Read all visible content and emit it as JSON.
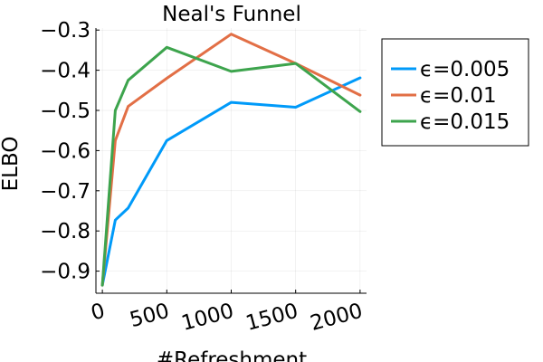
{
  "chart_data": {
    "type": "line",
    "title": "Neal's Funnel",
    "xlabel": "#Refreshment",
    "ylabel": "ELBO",
    "x": [
      0,
      100,
      200,
      500,
      1000,
      1500,
      2000
    ],
    "xticks": [
      0,
      500,
      1000,
      1500,
      2000
    ],
    "yticks": [
      -0.9,
      -0.8,
      -0.7,
      -0.6,
      -0.5,
      -0.4,
      -0.3
    ],
    "xlim": [
      -50,
      2050
    ],
    "ylim": [
      -0.955,
      -0.295
    ],
    "grid": true,
    "legend_position": "top-right, outside plot",
    "series": [
      {
        "name": "ϵ=0.005",
        "color": "#009af9",
        "values": [
          -0.935,
          -0.773,
          -0.743,
          -0.575,
          -0.48,
          -0.492,
          -0.419
        ]
      },
      {
        "name": "ϵ=0.01",
        "color": "#e26f46",
        "values": [
          -0.935,
          -0.575,
          -0.49,
          -0.42,
          -0.31,
          -0.383,
          -0.462
        ]
      },
      {
        "name": "ϵ=0.015",
        "color": "#3da44d",
        "values": [
          -0.935,
          -0.5,
          -0.425,
          -0.343,
          -0.403,
          -0.383,
          -0.503
        ]
      }
    ]
  }
}
